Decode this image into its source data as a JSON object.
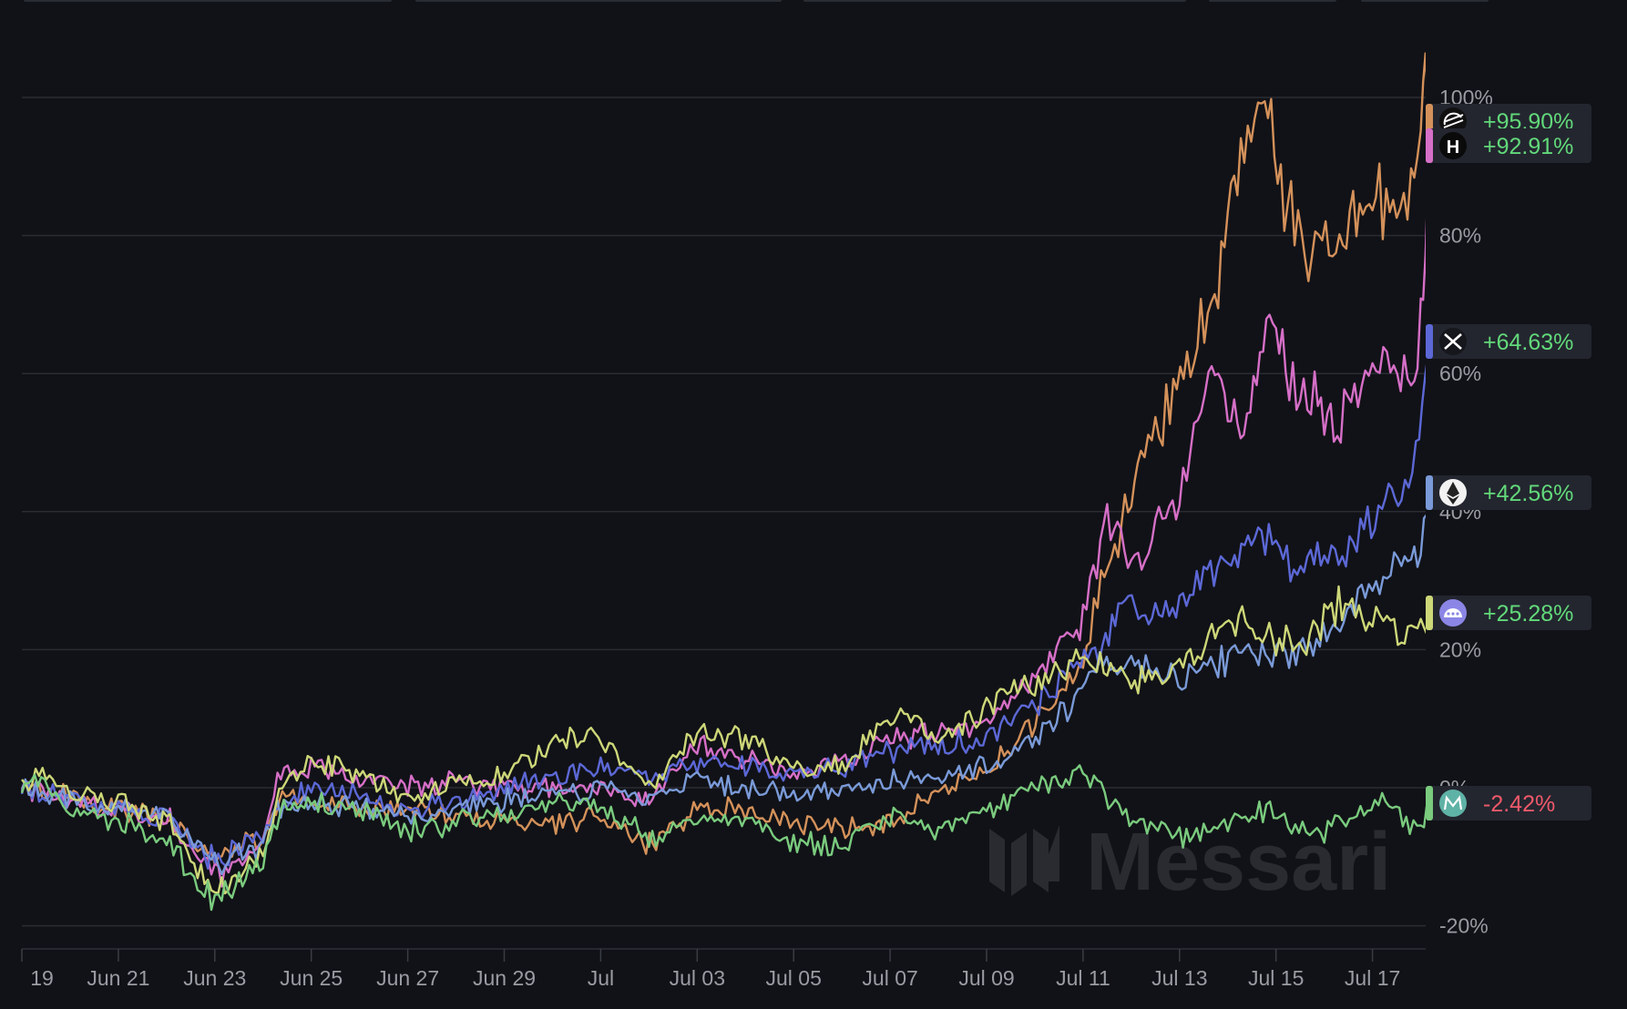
{
  "chart_data": {
    "type": "line",
    "x_ticks": [
      "19",
      "Jun 21",
      "Jun 23",
      "Jun 25",
      "Jun 27",
      "Jun 29",
      "Jul",
      "Jul 03",
      "Jul 05",
      "Jul 07",
      "Jul 09",
      "Jul 11",
      "Jul 13",
      "Jul 15",
      "Jul 17"
    ],
    "x_tick_days": [
      0,
      2,
      4,
      6,
      8,
      10,
      12,
      14,
      16,
      18,
      20,
      22,
      24,
      26,
      28
    ],
    "x_range": [
      0,
      29.2
    ],
    "y_ticks": [
      "100%",
      "80%",
      "60%",
      "40%",
      "20%",
      "0%",
      "-20%"
    ],
    "y_tick_values": [
      100,
      80,
      60,
      40,
      20,
      0,
      -20
    ],
    "ylim": [
      -24,
      106
    ],
    "grid": true,
    "unit": "%",
    "series": [
      {
        "final_label": "+95.90%",
        "final_value": 95.9,
        "color": "#d4915a",
        "icon": "stellar-icon",
        "icon_bg": "#111111",
        "points": [
          [
            0,
            0
          ],
          [
            1,
            -1
          ],
          [
            2,
            -3
          ],
          [
            3,
            -5
          ],
          [
            4,
            -10
          ],
          [
            5,
            -7
          ],
          [
            5.4,
            -1
          ],
          [
            6,
            -2
          ],
          [
            7,
            -3
          ],
          [
            8,
            -3
          ],
          [
            9,
            -4
          ],
          [
            10,
            -5
          ],
          [
            11,
            -5
          ],
          [
            12,
            -4
          ],
          [
            12.8,
            -8
          ],
          [
            13.5,
            -6
          ],
          [
            14,
            -3
          ],
          [
            15,
            -3
          ],
          [
            16,
            -5
          ],
          [
            17,
            -6
          ],
          [
            18,
            -5
          ],
          [
            19,
            0
          ],
          [
            20,
            2
          ],
          [
            20.8,
            8
          ],
          [
            21.5,
            13
          ],
          [
            22,
            18
          ],
          [
            22.3,
            28
          ],
          [
            22.8,
            38
          ],
          [
            23.2,
            48
          ],
          [
            23.8,
            55
          ],
          [
            24.3,
            63
          ],
          [
            24.8,
            74
          ],
          [
            25.2,
            88
          ],
          [
            25.7,
            103
          ],
          [
            26.1,
            87
          ],
          [
            26.6,
            78
          ],
          [
            27.1,
            79
          ],
          [
            27.6,
            83
          ],
          [
            28,
            85
          ],
          [
            28.5,
            84
          ],
          [
            28.8,
            88
          ],
          [
            29,
            99
          ],
          [
            29.1,
            106
          ],
          [
            29.2,
            95.9
          ]
        ]
      },
      {
        "final_label": "+92.91%",
        "final_value": 92.91,
        "color": "#d66fc7",
        "icon": "hedera-icon",
        "icon_bg": "#0a0a0a",
        "points": [
          [
            0,
            0
          ],
          [
            1,
            -2
          ],
          [
            2,
            -3
          ],
          [
            3,
            -4
          ],
          [
            4,
            -13
          ],
          [
            5,
            -8
          ],
          [
            5.3,
            2
          ],
          [
            6,
            3
          ],
          [
            7,
            1
          ],
          [
            8,
            0
          ],
          [
            9,
            1
          ],
          [
            10,
            0
          ],
          [
            11,
            0
          ],
          [
            12,
            0
          ],
          [
            13,
            -2
          ],
          [
            14,
            6
          ],
          [
            15,
            4
          ],
          [
            16,
            2
          ],
          [
            17,
            4
          ],
          [
            18,
            7
          ],
          [
            19,
            8
          ],
          [
            20,
            10
          ],
          [
            20.8,
            14
          ],
          [
            21.6,
            21
          ],
          [
            22,
            25
          ],
          [
            22.5,
            39
          ],
          [
            23,
            32
          ],
          [
            23.5,
            37
          ],
          [
            24,
            42
          ],
          [
            24.6,
            63
          ],
          [
            25,
            54
          ],
          [
            25.4,
            53
          ],
          [
            25.8,
            70
          ],
          [
            26.2,
            60
          ],
          [
            26.8,
            56
          ],
          [
            27.2,
            51
          ],
          [
            27.7,
            58
          ],
          [
            28.3,
            61
          ],
          [
            28.8,
            58
          ],
          [
            29,
            67
          ],
          [
            29.1,
            78
          ],
          [
            29.2,
            92.91
          ]
        ]
      },
      {
        "final_label": "+64.63%",
        "final_value": 64.63,
        "color": "#5c68d6",
        "icon": "xrp-icon",
        "icon_bg": "#15171c",
        "points": [
          [
            0,
            0
          ],
          [
            1,
            -2
          ],
          [
            2,
            -3
          ],
          [
            3,
            -5
          ],
          [
            4,
            -11
          ],
          [
            5,
            -7
          ],
          [
            5.3,
            -3
          ],
          [
            6,
            0
          ],
          [
            7,
            -1
          ],
          [
            8,
            -3
          ],
          [
            9,
            -2
          ],
          [
            10,
            0
          ],
          [
            11,
            1
          ],
          [
            12,
            3
          ],
          [
            13,
            2
          ],
          [
            14,
            4
          ],
          [
            15,
            3
          ],
          [
            16,
            2
          ],
          [
            17,
            3
          ],
          [
            18,
            5
          ],
          [
            19,
            6
          ],
          [
            20,
            7
          ],
          [
            20.8,
            11
          ],
          [
            21.8,
            17
          ],
          [
            22.4,
            21
          ],
          [
            22.8,
            27
          ],
          [
            23.5,
            25
          ],
          [
            24,
            27
          ],
          [
            24.5,
            30
          ],
          [
            25,
            33
          ],
          [
            25.7,
            37
          ],
          [
            26.3,
            32
          ],
          [
            27,
            33
          ],
          [
            27.6,
            36
          ],
          [
            28.2,
            40
          ],
          [
            28.6,
            43
          ],
          [
            28.9,
            48
          ],
          [
            29.1,
            60
          ],
          [
            29.2,
            64.63
          ]
        ]
      },
      {
        "final_label": "+42.56%",
        "final_value": 42.56,
        "color": "#7a9ad8",
        "icon": "ethereum-icon",
        "icon_bg": "#f2f2f2",
        "points": [
          [
            0,
            0
          ],
          [
            1,
            -2
          ],
          [
            2,
            -3
          ],
          [
            3,
            -4
          ],
          [
            4,
            -11
          ],
          [
            5,
            -8
          ],
          [
            5.3,
            -3
          ],
          [
            6,
            -2
          ],
          [
            7,
            -3
          ],
          [
            8,
            -4
          ],
          [
            9,
            -3
          ],
          [
            10,
            -2
          ],
          [
            11,
            -1
          ],
          [
            12,
            0
          ],
          [
            13,
            -2
          ],
          [
            14,
            1
          ],
          [
            15,
            0
          ],
          [
            16,
            -1
          ],
          [
            17,
            0
          ],
          [
            18,
            1
          ],
          [
            19,
            2
          ],
          [
            20,
            3
          ],
          [
            20.8,
            6
          ],
          [
            21.6,
            11
          ],
          [
            22.2,
            17
          ],
          [
            23,
            18
          ],
          [
            23.6,
            16
          ],
          [
            24.2,
            16
          ],
          [
            24.8,
            18
          ],
          [
            25.5,
            20
          ],
          [
            26.2,
            19
          ],
          [
            26.7,
            20
          ],
          [
            27.4,
            25
          ],
          [
            28,
            28
          ],
          [
            28.6,
            32
          ],
          [
            29,
            35
          ],
          [
            29.2,
            42.56
          ]
        ]
      },
      {
        "final_label": "+25.28%",
        "final_value": 25.28,
        "color": "#cdd778",
        "icon": "cronos-icon",
        "icon_bg": "#8b86e6",
        "points": [
          [
            0,
            0
          ],
          [
            0.5,
            2
          ],
          [
            1,
            -1
          ],
          [
            2,
            -2
          ],
          [
            3,
            -5
          ],
          [
            4,
            -15
          ],
          [
            5,
            -10
          ],
          [
            5.4,
            0
          ],
          [
            6,
            4
          ],
          [
            7,
            2
          ],
          [
            8,
            -2
          ],
          [
            9,
            1
          ],
          [
            10,
            2
          ],
          [
            11,
            6
          ],
          [
            11.8,
            8
          ],
          [
            12.4,
            4
          ],
          [
            13,
            0
          ],
          [
            14,
            8
          ],
          [
            15,
            7
          ],
          [
            16,
            3
          ],
          [
            17,
            3
          ],
          [
            17.8,
            9
          ],
          [
            18.5,
            10
          ],
          [
            19,
            7
          ],
          [
            20,
            12
          ],
          [
            21,
            15
          ],
          [
            22,
            19
          ],
          [
            23,
            15
          ],
          [
            24,
            17
          ],
          [
            24.6,
            21
          ],
          [
            25.3,
            25
          ],
          [
            26,
            21
          ],
          [
            26.7,
            22
          ],
          [
            27.3,
            27
          ],
          [
            28,
            25
          ],
          [
            28.6,
            22
          ],
          [
            29,
            23
          ],
          [
            29.2,
            25.28
          ]
        ]
      },
      {
        "final_label": "-2.42%",
        "final_value": -2.42,
        "color": "#7acb7e",
        "icon": "mantra-icon",
        "icon_bg": "#5fb2a6",
        "points": [
          [
            0,
            0
          ],
          [
            0.4,
            2
          ],
          [
            1,
            -3
          ],
          [
            2,
            -5
          ],
          [
            3,
            -8
          ],
          [
            4,
            -17
          ],
          [
            5,
            -10
          ],
          [
            5.5,
            -2
          ],
          [
            6,
            -2
          ],
          [
            7,
            -3
          ],
          [
            8,
            -6
          ],
          [
            9,
            -5
          ],
          [
            10,
            -4
          ],
          [
            11,
            -2
          ],
          [
            12,
            -3
          ],
          [
            13,
            -7
          ],
          [
            14,
            -5
          ],
          [
            15,
            -5
          ],
          [
            16,
            -8
          ],
          [
            17,
            -9
          ],
          [
            18,
            -4
          ],
          [
            19,
            -6
          ],
          [
            20,
            -3
          ],
          [
            21,
            0
          ],
          [
            22,
            2
          ],
          [
            22.6,
            -2
          ],
          [
            23.4,
            -6
          ],
          [
            24,
            -7
          ],
          [
            25,
            -5
          ],
          [
            25.8,
            -3
          ],
          [
            26.4,
            -7
          ],
          [
            27,
            -6
          ],
          [
            27.6,
            -4
          ],
          [
            28.2,
            -2
          ],
          [
            28.7,
            -5
          ],
          [
            29,
            -5
          ],
          [
            29.2,
            -2.42
          ]
        ]
      }
    ]
  },
  "watermark": {
    "logo_icon": "messari-logo-icon",
    "text": "Messari"
  }
}
